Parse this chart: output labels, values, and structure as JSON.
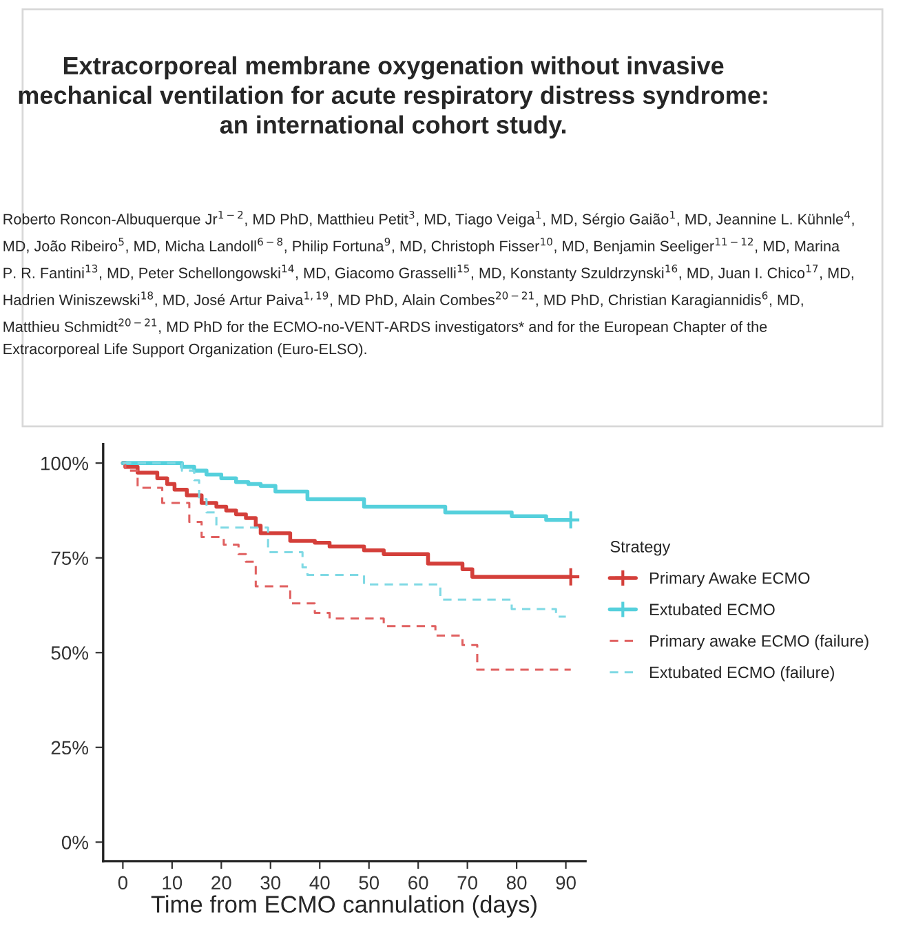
{
  "chart_data": {
    "type": "step",
    "title": "Extracorporeal membrane oxygenation without invasive mechanical ventilation for acute respiratory distress syndrome: an international cohort study.",
    "subtitle": "Roberto Roncon-Albuquerque Jr$^{1−2}$, MD PhD, Matthieu Petit$^{3}$, MD, Tiago Veiga$^{1}$, MD, Sérgio Gaião$^{1}$, MD, Jeannine L. Kühnle$^{4}$, MD, João Ribeiro$^{5}$, MD, Micha Landoll$^{6−8}$, Philip Fortuna$^{9}$, MD, Christoph Fisser$^{10}$, MD, Benjamin Seeliger$^{11−12}$, MD, Marina P. R. Fantini$^{13}$, MD, Peter Schellongowski$^{14}$, MD, Giacomo Grasselli$^{15}$, MD, Konstanty Szuldrzynski$^{16}$, MD, Juan I. Chico$^{17}$, MD, Hadrien Winiszewski$^{18}$, MD, José Artur Paiva$^{1,19}$, MD PhD, Alain Combes$^{20−21}$, MD PhD, Christian Karagiannidis$^{6}$, MD, Matthieu Schmidt$^{20−21}$, MD PhD for the ECMO-no-VENT-ARDS investigators* and for the European Chapter of the Extracorporeal Life Support Organization (Euro-ELSO).",
    "xlabel": "Time from ECMO cannulation (days)",
    "legend_title": "Strategy",
    "legend": "right",
    "grid": false,
    "xlim": [
      -4,
      94
    ],
    "ylim": [
      -5,
      105
    ],
    "xticks": [
      0,
      10,
      20,
      30,
      40,
      50,
      60,
      70,
      80,
      90
    ],
    "yticks": [
      {
        "value": 0,
        "label": "0%"
      },
      {
        "value": 25,
        "label": "25%"
      },
      {
        "value": 50,
        "label": "50%"
      },
      {
        "value": 75,
        "label": "75%"
      },
      {
        "value": 100,
        "label": "100%"
      }
    ],
    "series": [
      {
        "name": "Primary Awake ECMO",
        "color": "#d43f3a",
        "line_style": "solid",
        "x": [
          0,
          0.5,
          3,
          7,
          9,
          10.5,
          13,
          16,
          19,
          21,
          23,
          25,
          27,
          28,
          34,
          39,
          42,
          49,
          53,
          62,
          69,
          71,
          91
        ],
        "values": [
          100,
          99,
          97.5,
          96,
          94.5,
          93,
          91.5,
          89.5,
          88.5,
          87.5,
          86.5,
          85.5,
          83.5,
          81.5,
          79.5,
          79,
          78,
          77,
          76,
          73.5,
          72,
          70,
          70
        ]
      },
      {
        "name": "Extubated ECMO",
        "color": "#55d0dc",
        "line_style": "solid",
        "x": [
          0,
          12,
          14.5,
          17,
          20,
          23,
          25.5,
          28,
          31,
          37.5,
          49,
          65.5,
          79,
          86,
          91
        ],
        "values": [
          100,
          99,
          98,
          97,
          96,
          95,
          94.5,
          94,
          92.5,
          90.5,
          88.5,
          87,
          86,
          85,
          85
        ]
      },
      {
        "name": "Primary awake ECMO (failure)",
        "color": "#e06060",
        "line_style": "dashed",
        "marker": "none",
        "x": [
          0,
          0.5,
          3,
          8,
          13.5,
          16,
          20.5,
          23.5,
          25,
          27,
          34,
          39,
          42,
          53,
          63.5,
          69,
          72,
          91
        ],
        "values": [
          100,
          98,
          93.5,
          89.5,
          84.5,
          80.5,
          78.5,
          76,
          74,
          67.5,
          63,
          60.5,
          59,
          57,
          54.5,
          52,
          45.5,
          45.5
        ]
      },
      {
        "name": "Extubated ECMO (failure)",
        "color": "#7fd9e4",
        "line_style": "dashed",
        "marker": "none",
        "x": [
          0,
          12,
          14.5,
          15.5,
          17,
          19,
          29.5,
          36.5,
          37.5,
          49,
          64.5,
          79,
          88,
          90
        ],
        "values": [
          100,
          98,
          95.5,
          90.5,
          87,
          83,
          76.5,
          72.5,
          70.5,
          68,
          64,
          61.5,
          59.5,
          59.5
        ]
      },
      {
        "type": "scatter",
        "color": "#d43f3a",
        "marker": "cross",
        "x": [
          91
        ],
        "values": [
          70
        ]
      },
      {
        "type": "scatter",
        "color": "#55d0dc",
        "marker": "cross",
        "x": [
          91
        ],
        "values": [
          85
        ]
      }
    ]
  }
}
